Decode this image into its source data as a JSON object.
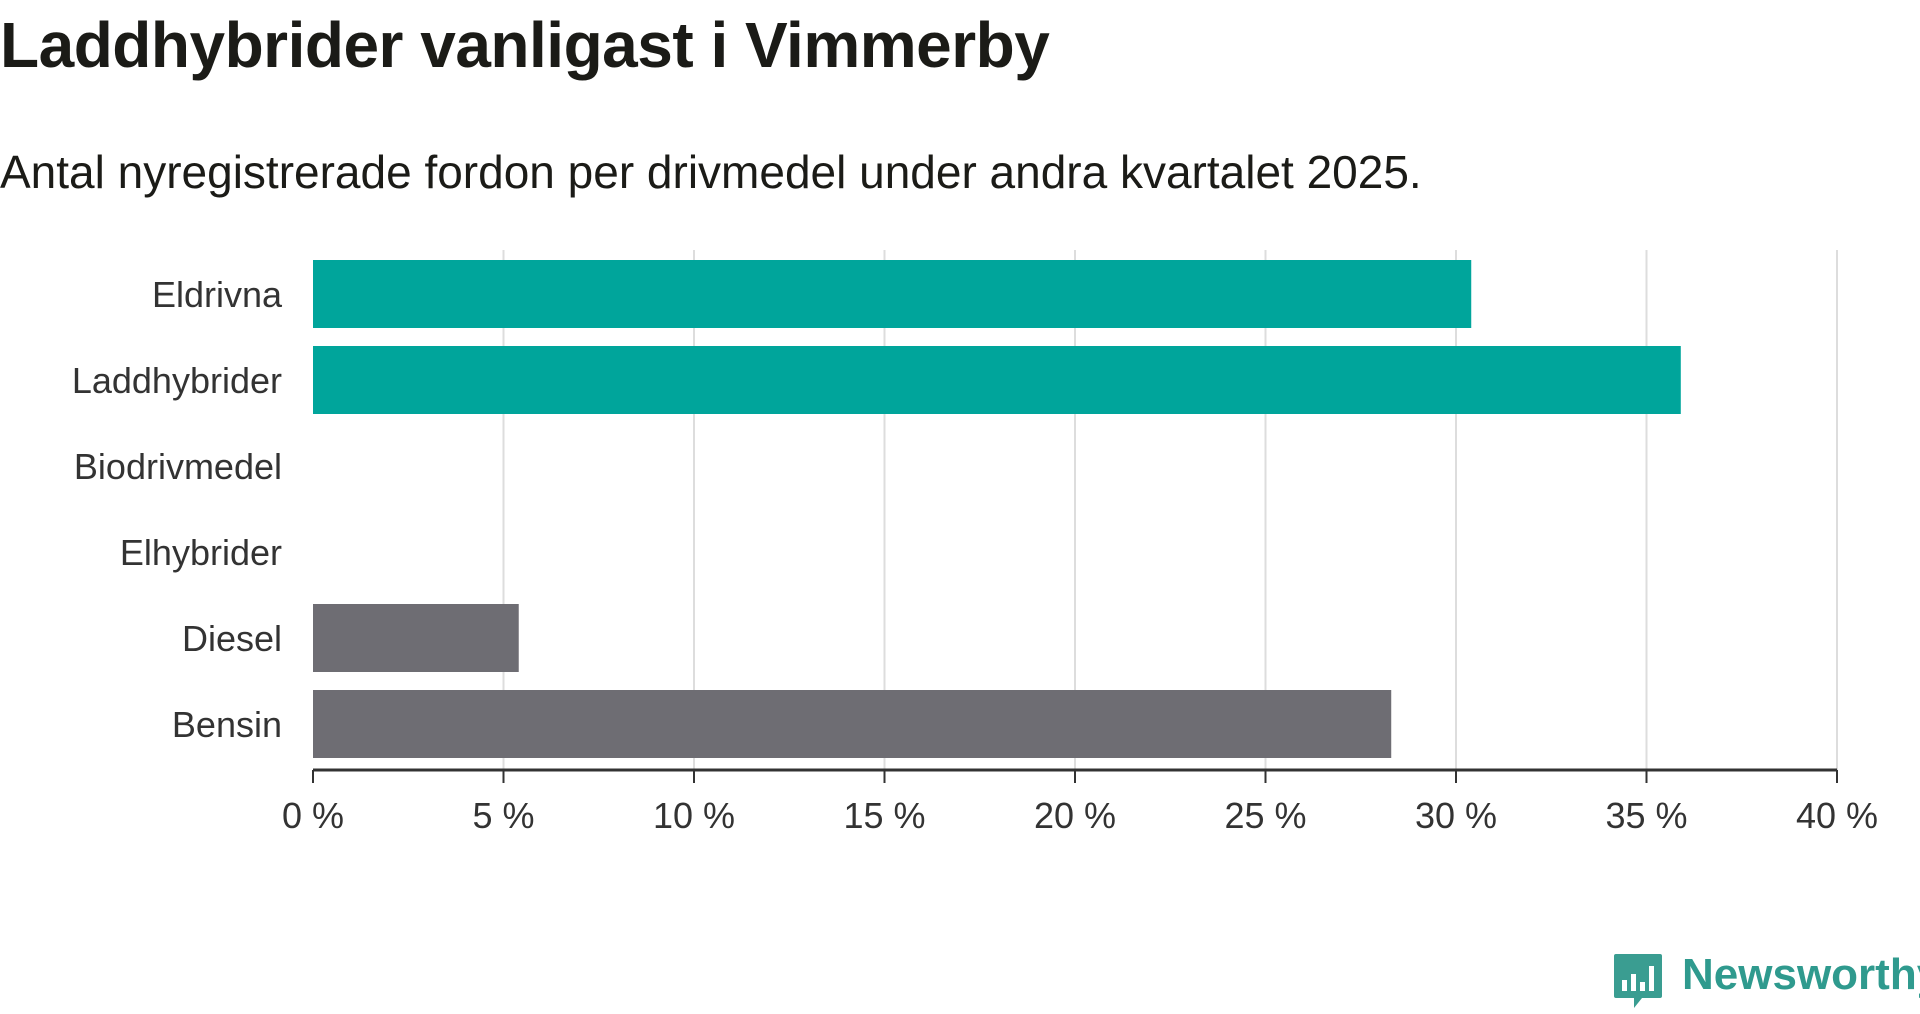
{
  "title": "Laddhybrider vanligast i Vimmerby",
  "subtitle": "Antal nyregistrerade fordon per drivmedel under andra kvartalet 2025.",
  "logo_text": "Newsworthy",
  "chart_data": {
    "type": "bar",
    "orientation": "horizontal",
    "categories": [
      "Eldrivna",
      "Laddhybrider",
      "Biodrivmedel",
      "Elhybrider",
      "Diesel",
      "Bensin"
    ],
    "values": [
      30.4,
      35.9,
      0,
      0,
      5.4,
      28.3
    ],
    "colors": [
      "#00a59b",
      "#00a59b",
      "#00a59b",
      "#00a59b",
      "#6e6d73",
      "#6e6d73"
    ],
    "xlim": [
      0,
      40
    ],
    "xticks": [
      0,
      5,
      10,
      15,
      20,
      25,
      30,
      35,
      40
    ],
    "xtick_labels": [
      "0 %",
      "5 %",
      "10 %",
      "15 %",
      "20 %",
      "25 %",
      "30 %",
      "35 %",
      "40 %"
    ],
    "grid": "vertical"
  }
}
